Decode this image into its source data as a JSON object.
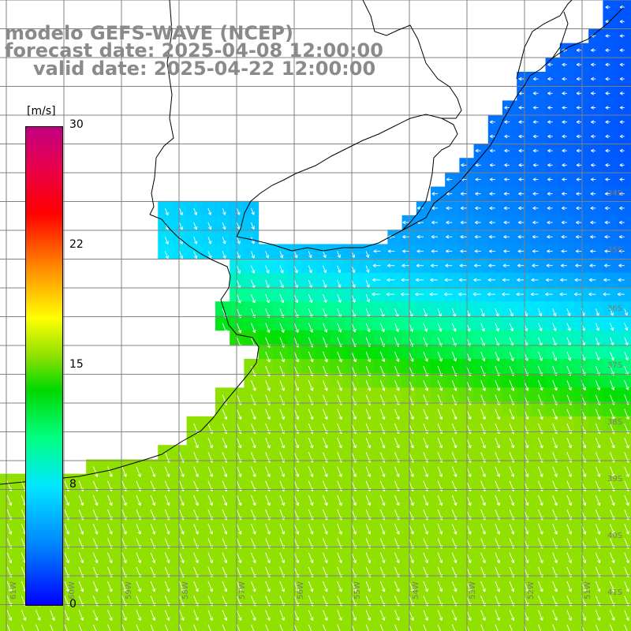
{
  "title": {
    "line1": "modelo GEFS-WAVE (NCEP)",
    "line2": "forecast date: 2025-04-08 12:00:00",
    "line3": "valid date: 2025-04-22 12:00:00"
  },
  "colorbar": {
    "unit": "[m/s]",
    "ticks": [
      "30",
      "22",
      "15",
      "8",
      "0"
    ],
    "tick_values": [
      30,
      22,
      15,
      8,
      0
    ],
    "colors": [
      "#0000ff",
      "#0080ff",
      "#00e8ff",
      "#00ff80",
      "#00d800",
      "#8ce000",
      "#ffff00",
      "#ff9000",
      "#ff0000",
      "#e80050",
      "#c00080"
    ]
  },
  "lat_labels": [
    "34S",
    "35S",
    "36S",
    "37S",
    "38S",
    "39S",
    "40S",
    "41S"
  ],
  "lon_labels": [
    "61W",
    "60W",
    "59W",
    "58W",
    "57W",
    "56W",
    "55W",
    "54W",
    "53W",
    "52W",
    "51W"
  ],
  "colors": {
    "land": "#ffffff",
    "grid": "#808080",
    "coast": "#000000",
    "arrow": "#ffffff",
    "title": "#8a8a8a"
  }
}
